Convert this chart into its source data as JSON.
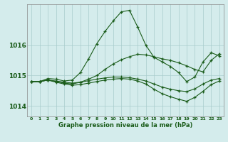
{
  "title": "Graphe pression niveau de la mer (hPa)",
  "background_color": "#d4ecec",
  "grid_color": "#a8cccc",
  "line_color": "#1a5c1a",
  "y_ticks": [
    1014,
    1015,
    1016
  ],
  "ylim": [
    1013.65,
    1017.35
  ],
  "series": [
    [
      1014.8,
      1014.8,
      1014.9,
      1014.88,
      1014.82,
      1014.85,
      1015.1,
      1015.55,
      1016.05,
      1016.45,
      1016.8,
      1017.1,
      1017.15,
      1016.6,
      1016.0,
      1015.6,
      1015.45,
      1015.3,
      1015.1,
      1014.8,
      1014.95,
      1015.45,
      1015.75,
      1015.65
    ],
    [
      1014.8,
      1014.8,
      1014.85,
      1014.8,
      1014.75,
      1014.72,
      1014.78,
      1014.88,
      1015.0,
      1015.2,
      1015.38,
      1015.52,
      1015.62,
      1015.7,
      1015.68,
      1015.62,
      1015.55,
      1015.5,
      1015.42,
      1015.32,
      1015.2,
      1015.12,
      1015.5,
      1015.72
    ],
    [
      1014.8,
      1014.8,
      1014.85,
      1014.78,
      1014.72,
      1014.68,
      1014.7,
      1014.75,
      1014.8,
      1014.85,
      1014.88,
      1014.9,
      1014.88,
      1014.82,
      1014.72,
      1014.55,
      1014.4,
      1014.3,
      1014.22,
      1014.15,
      1014.28,
      1014.48,
      1014.7,
      1014.82
    ],
    [
      1014.8,
      1014.8,
      1014.85,
      1014.82,
      1014.78,
      1014.75,
      1014.78,
      1014.83,
      1014.88,
      1014.92,
      1014.95,
      1014.95,
      1014.93,
      1014.88,
      1014.82,
      1014.72,
      1014.62,
      1014.55,
      1014.5,
      1014.47,
      1014.56,
      1014.72,
      1014.85,
      1014.9
    ]
  ]
}
